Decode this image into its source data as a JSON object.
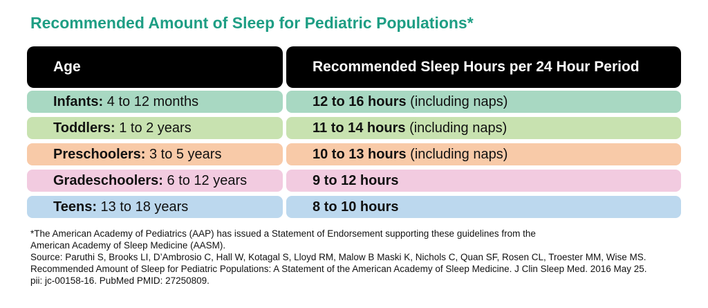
{
  "title": "Recommended Amount of Sleep for Pediatric Populations*",
  "header": {
    "age": "Age",
    "hours": "Recommended Sleep Hours per 24 Hour Period"
  },
  "rows": [
    {
      "group": "Infants:",
      "range": "4 to 12 months",
      "hours": "12 to 16 hours",
      "note": "(including naps)",
      "color": "#a8d8c2"
    },
    {
      "group": "Toddlers:",
      "range": "1 to 2 years",
      "hours": "11 to 14 hours",
      "note": "(including naps)",
      "color": "#c8e2b0"
    },
    {
      "group": "Preschoolers:",
      "range": "3 to 5 years",
      "hours": "10 to 13 hours",
      "note": "(including naps)",
      "color": "#f8caa8"
    },
    {
      "group": "Gradeschoolers:",
      "range": "6 to 12 years",
      "hours": "9 to 12 hours",
      "note": "",
      "color": "#f2cbe0"
    },
    {
      "group": "Teens:",
      "range": "13 to 18 years",
      "hours": "8 to 10 hours",
      "note": "",
      "color": "#bcd8ee"
    }
  ],
  "footnote": {
    "line1": "*The American Academy of Pediatrics (AAP) has issued a Statement of Endorsement supporting these guidelines from the",
    "line2": "American Academy of Sleep Medicine (AASM).",
    "line3": "Source: Paruthi S, Brooks LI, D’Ambrosio C, Hall W, Kotagal S, Lloyd RM, Malow B Maski K, Nichols C, Quan SF, Rosen CL, Troester MM, Wise MS.",
    "line4": "Recommended Amount of Sleep for Pediatric Populations: A Statement of the American Academy of Sleep Medicine. J Clin Sleep Med. 2016 May 25.",
    "line5": "pii: jc-00158-16. PubMed PMID: 27250809."
  },
  "colors": {
    "title": "#1e9e84",
    "header_bg": "#000000"
  }
}
